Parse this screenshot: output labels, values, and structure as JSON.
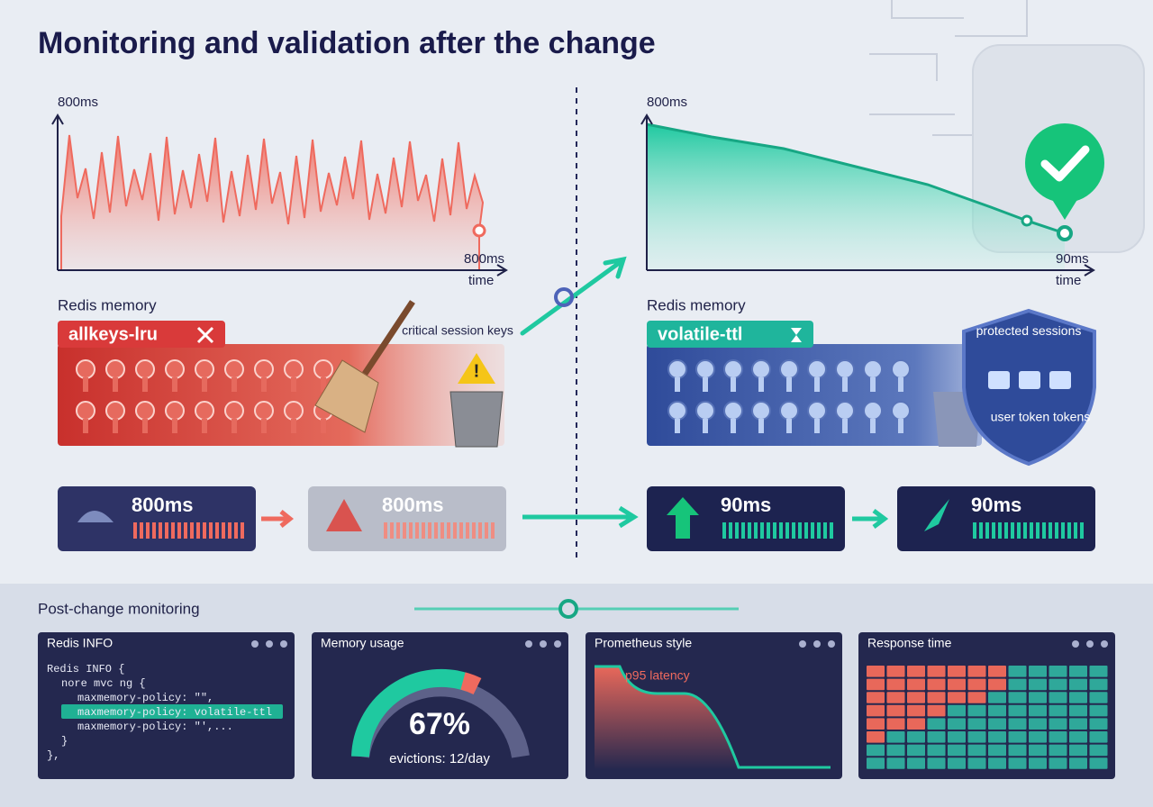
{
  "header": {
    "title": "Monitoring and validation after the change"
  },
  "before": {
    "chart": {
      "y_label": "800ms",
      "end_label": "800ms",
      "x_label": "time"
    },
    "memory": {
      "label": "Redis memory",
      "policy": "allkeys-lru",
      "warning": "critical session keys"
    },
    "metrics": [
      "800ms",
      "800ms"
    ]
  },
  "after": {
    "chart": {
      "y_label": "800ms",
      "end_label": "90ms",
      "x_label": "time"
    },
    "memory": {
      "label": "Redis memory",
      "policy": "volatile-ttl",
      "shield": "protected sessions",
      "shield_note": "user token tokens"
    },
    "metrics": [
      "90ms",
      "90ms"
    ]
  },
  "monitoring": {
    "title": "Post-change monitoring",
    "panels": [
      {
        "title": "Redis INFO",
        "lines": [
          "Redis INFO {",
          "nore mvc ng {",
          "maxmemory-policy: \"\",",
          "maxmemory-policy: volatile-ttl",
          "maxmemory-policy: \"',...",
          "}",
          "},"
        ]
      },
      {
        "title": "Memory usage",
        "value": "67%",
        "note": "evictions: 12/day"
      },
      {
        "title": "Prometheus style",
        "legend": "p95 latency"
      },
      {
        "title": "Response time"
      }
    ]
  }
}
